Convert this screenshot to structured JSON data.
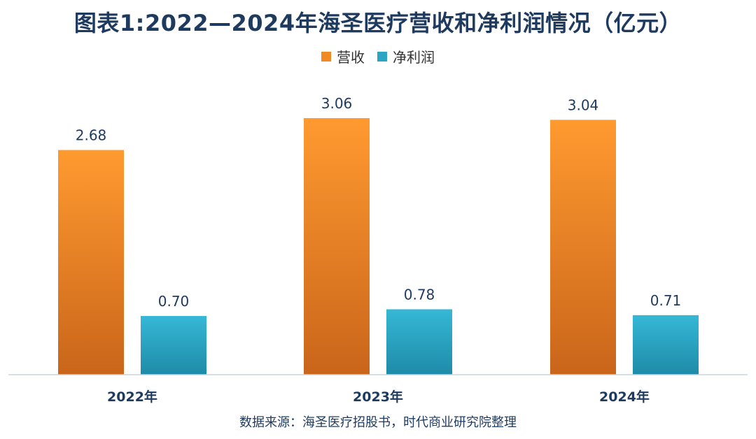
{
  "chart_data": {
    "type": "bar",
    "title": "图表1:2022—2024年海圣医疗营收和净利润情况（亿元）",
    "categories": [
      "2022年",
      "2023年",
      "2024年"
    ],
    "series": [
      {
        "name": "营收",
        "values": [
          2.68,
          3.06,
          3.04
        ],
        "color": "#f08a24"
      },
      {
        "name": "净利润",
        "values": [
          0.7,
          0.78,
          0.71
        ],
        "color": "#2aa6c4"
      }
    ],
    "data_labels": [
      [
        "2.68",
        "3.06",
        "3.04"
      ],
      [
        "0.70",
        "0.78",
        "0.71"
      ]
    ],
    "ylim": [
      0,
      3.9
    ],
    "grid": false,
    "legend_position": "top-center",
    "source": "数据来源：海圣医疗招股书，时代商业研究院整理"
  }
}
